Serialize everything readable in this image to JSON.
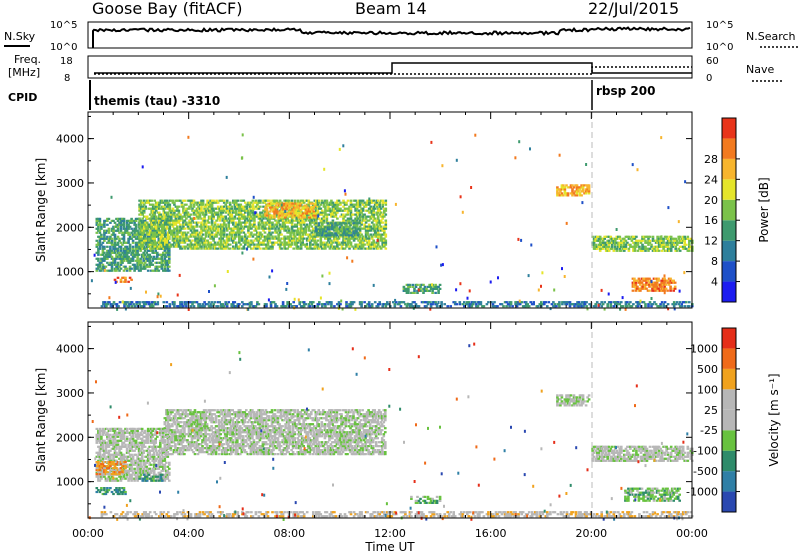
{
  "header": {
    "station": "Goose Bay (fitACF)",
    "beam": "Beam 14",
    "date": "22/Jul/2015"
  },
  "panels": {
    "nsky_label": "N.Sky",
    "nsearch_label": "N.Search",
    "nsky_ticks": [
      "10^5",
      "10^0"
    ],
    "nsearch_ticks": [
      "10^5",
      "10^0"
    ],
    "freq_label": "Freq.",
    "freq_unit": "[MHz]",
    "freq_ticks": [
      "18",
      "8"
    ],
    "nave_label": "Nave",
    "nave_ticks": [
      "60",
      "0"
    ],
    "cpid_label": "CPID",
    "cpid_segments": [
      {
        "text": "themis (tau) -3310",
        "start_h": 0,
        "end_h": 20
      },
      {
        "text": "rbsp 200",
        "start_h": 20,
        "end_h": 24
      }
    ]
  },
  "chart_data": [
    {
      "type": "heatmap",
      "name": "power",
      "ylabel": "Slant Range [km]",
      "xlabel": "Time UT",
      "xlim": [
        0,
        24
      ],
      "ylim": [
        180,
        4600
      ],
      "yticks": [
        "1000",
        "2000",
        "3000",
        "4000"
      ],
      "xticks": [
        "00:00",
        "04:00",
        "08:00",
        "12:00",
        "16:00",
        "20:00",
        "00:00"
      ],
      "colorbar": {
        "label": "Power [dB]",
        "ticks": [
          "4",
          "8",
          "12",
          "16",
          "20",
          "24",
          "28"
        ],
        "colors": [
          "#1c1cf0",
          "#1e50c8",
          "#2e7f9c",
          "#3e9a6e",
          "#7bc24a",
          "#e5e52a",
          "#f7b52e",
          "#f27a1f",
          "#e8341a"
        ]
      },
      "regions": [
        {
          "t0": 0.3,
          "t1": 3.2,
          "r0": 1000,
          "r1": 2200,
          "level": 3
        },
        {
          "t0": 0.9,
          "t1": 1.7,
          "r0": 750,
          "r1": 850,
          "level": 7
        },
        {
          "t0": 2.0,
          "t1": 11.8,
          "r0": 1500,
          "r1": 2600,
          "level": 4
        },
        {
          "t0": 7.0,
          "t1": 9.0,
          "r0": 2200,
          "r1": 2550,
          "level": 6
        },
        {
          "t0": 9.0,
          "t1": 10.8,
          "r0": 1800,
          "r1": 2100,
          "level": 3
        },
        {
          "t0": 12.5,
          "t1": 14.0,
          "r0": 500,
          "r1": 700,
          "level": 3
        },
        {
          "t0": 18.6,
          "t1": 19.9,
          "r0": 2700,
          "r1": 2950,
          "level": 6
        },
        {
          "t0": 20.0,
          "t1": 24.0,
          "r0": 1450,
          "r1": 1800,
          "level": 4
        },
        {
          "t0": 21.6,
          "t1": 23.3,
          "r0": 550,
          "r1": 850,
          "level": 7
        },
        {
          "t0": 0.5,
          "t1": 24.0,
          "r0": 200,
          "r1": 320,
          "level": 2
        }
      ]
    },
    {
      "type": "heatmap",
      "name": "velocity",
      "ylabel": "Slant Range [km]",
      "xlabel": "Time UT",
      "xlim": [
        0,
        24
      ],
      "ylim": [
        180,
        4600
      ],
      "yticks": [
        "1000",
        "2000",
        "3000",
        "4000"
      ],
      "xticks": [
        "00:00",
        "04:00",
        "08:00",
        "12:00",
        "16:00",
        "20:00",
        "00:00"
      ],
      "colorbar": {
        "label": "Velocity [m s⁻¹]",
        "ticks": [
          "1000",
          "500",
          "100",
          "25",
          "-25",
          "-100",
          "-500",
          "-1000"
        ],
        "colors": [
          "#2a48b0",
          "#2f7fa6",
          "#2e8b6a",
          "#68c23f",
          "#b7b7b7",
          "#b7b7b7",
          "#f0a21e",
          "#ef6a19",
          "#e52e19"
        ]
      },
      "regions": [
        {
          "t0": 0.3,
          "t1": 3.2,
          "r0": 1000,
          "r1": 2200,
          "level": 4
        },
        {
          "t0": 0.3,
          "t1": 1.5,
          "r0": 1150,
          "r1": 1450,
          "level": 6
        },
        {
          "t0": 0.3,
          "t1": 1.5,
          "r0": 700,
          "r1": 850,
          "level": 2
        },
        {
          "t0": 2.0,
          "t1": 3.0,
          "r0": 1000,
          "r1": 1150,
          "level": 2
        },
        {
          "t0": 3.0,
          "t1": 11.8,
          "r0": 1600,
          "r1": 2600,
          "level": 4
        },
        {
          "t0": 12.8,
          "t1": 14.0,
          "r0": 500,
          "r1": 680,
          "level": 3
        },
        {
          "t0": 18.6,
          "t1": 19.9,
          "r0": 2700,
          "r1": 2950,
          "level": 4
        },
        {
          "t0": 20.0,
          "t1": 24.0,
          "r0": 1450,
          "r1": 1800,
          "level": 4
        },
        {
          "t0": 21.3,
          "t1": 23.5,
          "r0": 550,
          "r1": 850,
          "level": 3
        },
        {
          "t0": 0.5,
          "t1": 24.0,
          "r0": 200,
          "r1": 320,
          "level": 5
        }
      ]
    }
  ]
}
